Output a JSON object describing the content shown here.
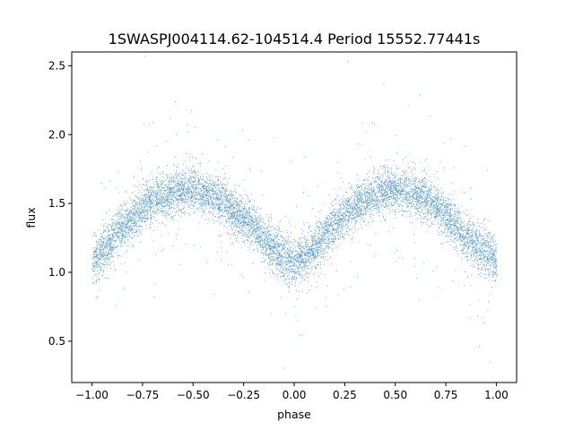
{
  "chart_data": {
    "type": "scatter",
    "title": "1SWASPJ004114.62-104514.4 Period 15552.77441s",
    "xlabel": "phase",
    "ylabel": "flux",
    "xlim": [
      -1.1,
      1.1
    ],
    "ylim": [
      0.2,
      2.6
    ],
    "x_ticks": [
      -1.0,
      -0.75,
      -0.5,
      -0.25,
      0.0,
      0.25,
      0.5,
      0.75,
      1.0
    ],
    "x_tick_labels": [
      "−1.00",
      "−0.75",
      "−0.50",
      "−0.25",
      "0.00",
      "0.25",
      "0.50",
      "0.75",
      "1.00"
    ],
    "y_ticks": [
      0.5,
      1.0,
      1.5,
      2.0,
      2.5
    ],
    "y_tick_labels": [
      "0.5",
      "1.0",
      "1.5",
      "2.0",
      "2.5"
    ],
    "grid": false,
    "legend": "none",
    "point_color": "#1f77b4",
    "curve_model": {
      "phase": [
        -1.0,
        -0.9,
        -0.8,
        -0.7,
        -0.6,
        -0.5,
        -0.4,
        -0.3,
        -0.2,
        -0.1,
        0.0,
        0.1,
        0.2,
        0.3,
        0.4,
        0.5,
        0.6,
        0.7,
        0.8,
        0.9,
        1.0
      ],
      "flux": [
        1.08,
        1.24,
        1.4,
        1.52,
        1.58,
        1.6,
        1.55,
        1.45,
        1.32,
        1.16,
        1.07,
        1.18,
        1.34,
        1.48,
        1.57,
        1.6,
        1.56,
        1.48,
        1.34,
        1.18,
        1.08
      ],
      "scatter_sigma": 0.08,
      "n_points": 9000
    }
  }
}
